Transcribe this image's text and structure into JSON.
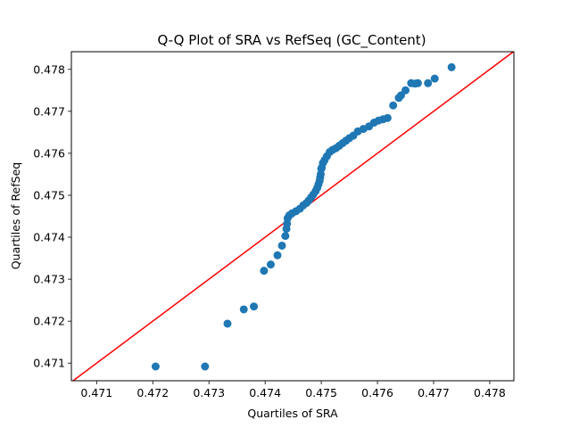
{
  "chart_data": {
    "type": "scatter",
    "title": "Q-Q Plot of SRA vs RefSeq (GC_Content)",
    "xlabel": "Quartiles of SRA",
    "ylabel": "Quartiles of RefSeq",
    "xlim": [
      0.47055,
      0.47843
    ],
    "ylim": [
      0.47058,
      0.47842
    ],
    "xticks": [
      0.471,
      0.472,
      0.473,
      0.474,
      0.475,
      0.476,
      0.477,
      0.478
    ],
    "yticks": [
      0.471,
      0.472,
      0.473,
      0.474,
      0.475,
      0.476,
      0.477,
      0.478
    ],
    "grid": false,
    "colors": {
      "points": "#1f77b4",
      "reference_line": "#ff0000"
    },
    "reference_line": {
      "x": [
        0.47055,
        0.47843
      ],
      "y": [
        0.47055,
        0.47843
      ]
    },
    "points": {
      "x": [
        0.47205,
        0.47293,
        0.47333,
        0.47362,
        0.4738,
        0.47398,
        0.4741,
        0.47422,
        0.4743,
        0.47436,
        0.47438,
        0.47439,
        0.4744,
        0.47443,
        0.47448,
        0.47455,
        0.47462,
        0.47468,
        0.47474,
        0.47478,
        0.47482,
        0.47486,
        0.4749,
        0.47493,
        0.47495,
        0.47497,
        0.47498,
        0.47499,
        0.475,
        0.47501,
        0.47503,
        0.47506,
        0.4751,
        0.47515,
        0.4752,
        0.47526,
        0.47532,
        0.47538,
        0.47544,
        0.4755,
        0.47557,
        0.47565,
        0.47575,
        0.47585,
        0.47594,
        0.47602,
        0.4761,
        0.47618,
        0.47628,
        0.47638,
        0.47642,
        0.4765,
        0.4766,
        0.47667,
        0.47672,
        0.4769,
        0.47702,
        0.47732
      ],
      "y": [
        0.47092,
        0.47092,
        0.47194,
        0.47228,
        0.47235,
        0.4732,
        0.47335,
        0.47357,
        0.4738,
        0.47403,
        0.4742,
        0.47432,
        0.47445,
        0.47452,
        0.47457,
        0.47462,
        0.47468,
        0.47476,
        0.47482,
        0.47488,
        0.47495,
        0.47502,
        0.4751,
        0.47518,
        0.47526,
        0.47534,
        0.47542,
        0.4755,
        0.47563,
        0.47566,
        0.47577,
        0.47584,
        0.47593,
        0.47603,
        0.47608,
        0.47612,
        0.47618,
        0.47624,
        0.4763,
        0.47636,
        0.47642,
        0.47652,
        0.47658,
        0.47664,
        0.47673,
        0.47678,
        0.47681,
        0.47684,
        0.47714,
        0.47732,
        0.47738,
        0.4775,
        0.47767,
        0.47766,
        0.47767,
        0.47767,
        0.47778,
        0.47805
      ]
    }
  }
}
